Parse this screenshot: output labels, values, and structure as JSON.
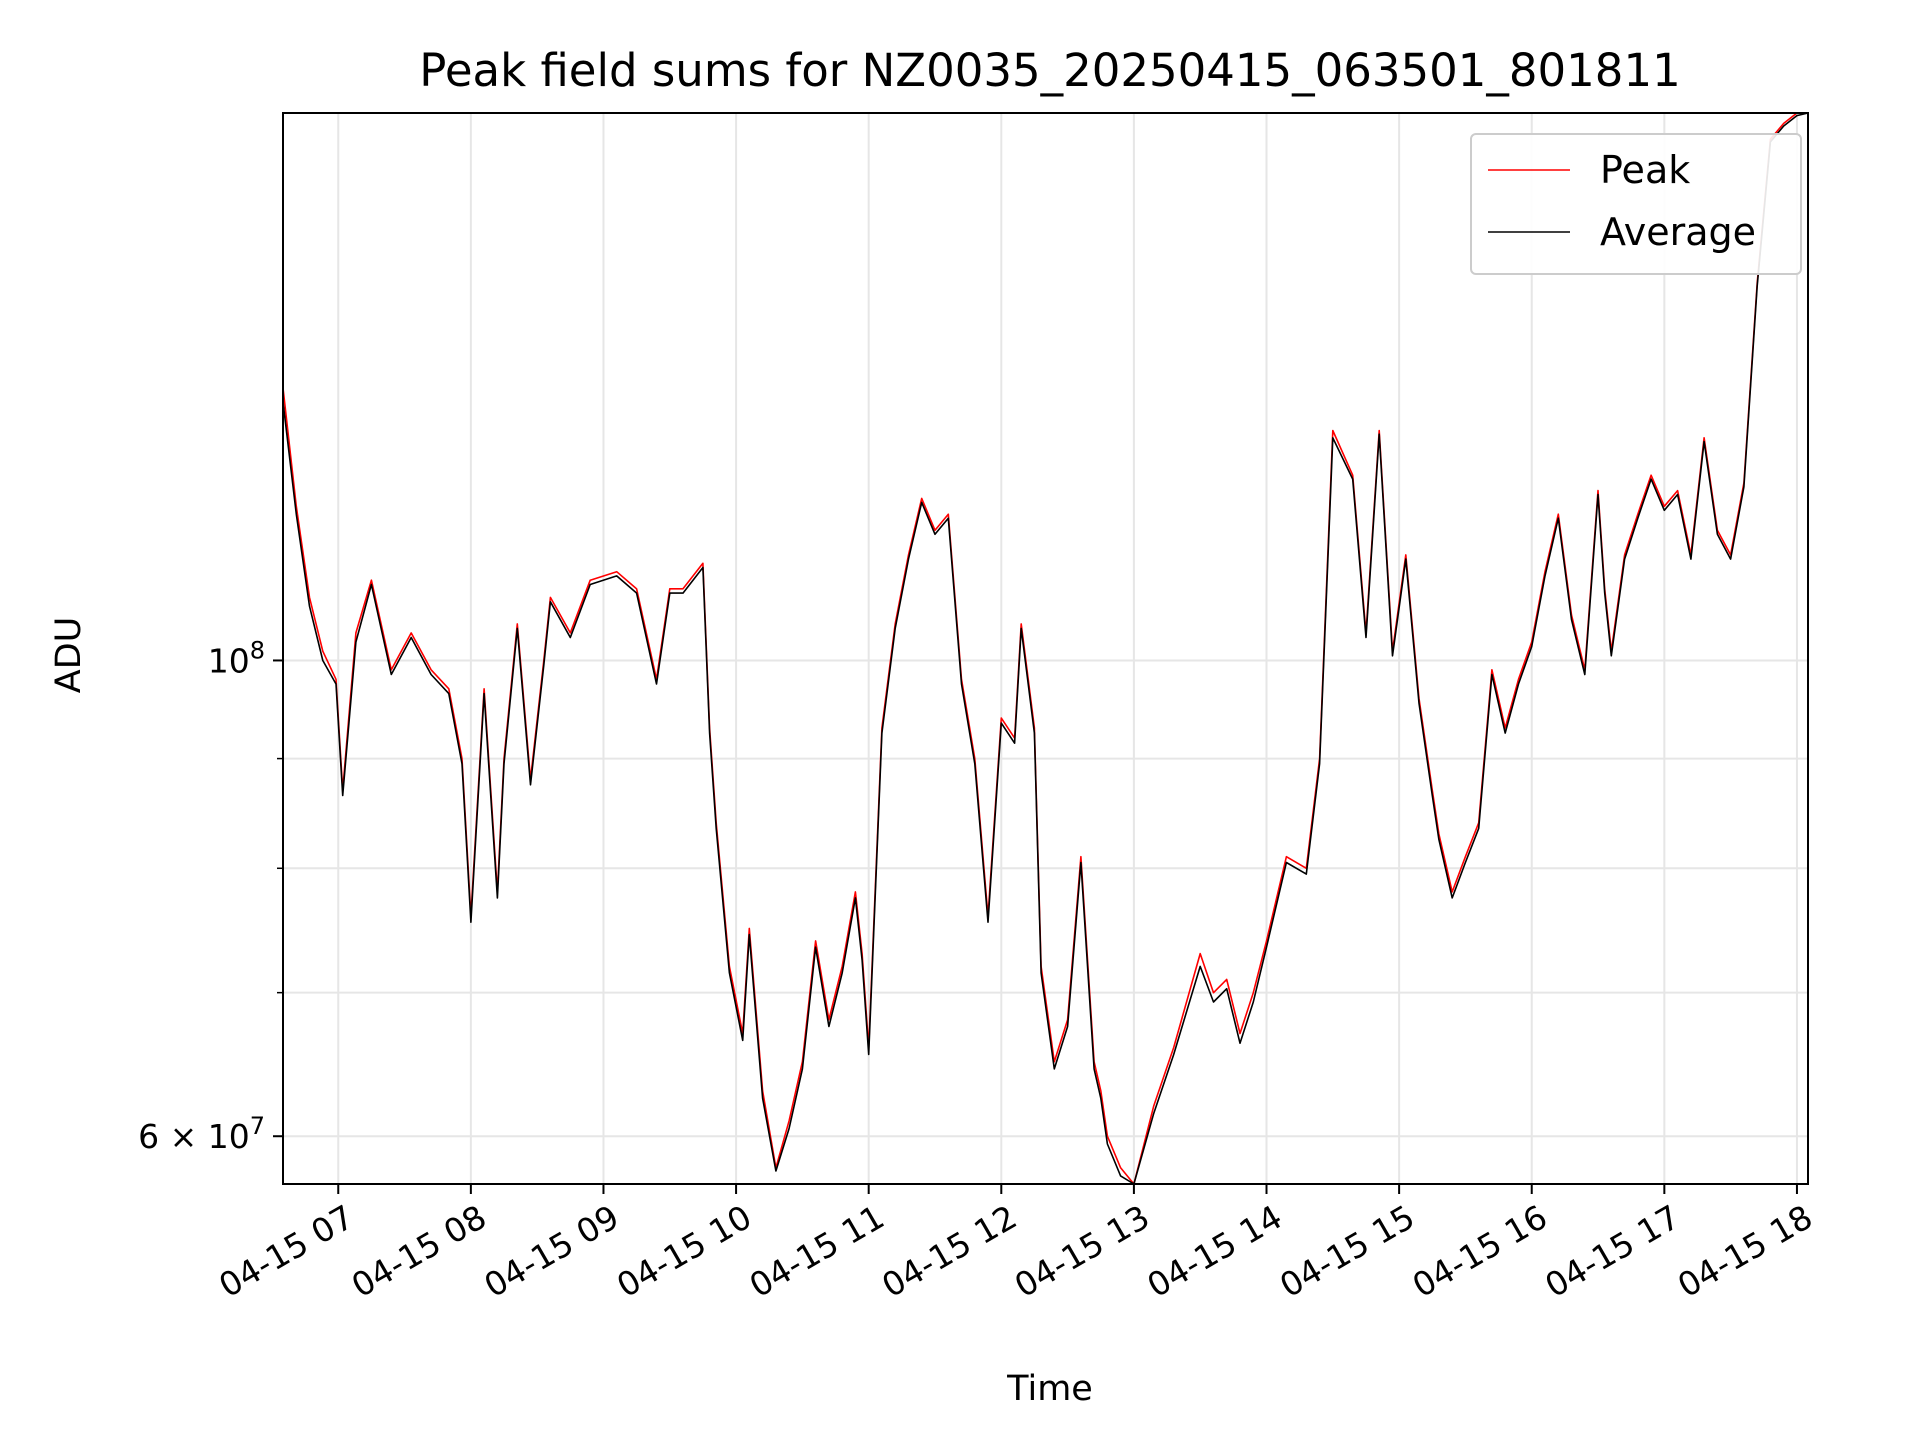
{
  "chart_data": {
    "type": "line",
    "title": "Peak field sums for NZ0035_20250415_063501_801811",
    "xlabel": "Time",
    "ylabel": "ADU",
    "x_type": "time",
    "y_scale": "log",
    "xlim": [
      "04-15 06:35",
      "04-15 18:05"
    ],
    "ylim": [
      57000000,
      180000000
    ],
    "x_ticks": [
      "04-15 07",
      "04-15 08",
      "04-15 09",
      "04-15 10",
      "04-15 11",
      "04-15 12",
      "04-15 13",
      "04-15 14",
      "04-15 15",
      "04-15 16",
      "04-15 17",
      "04-15 18"
    ],
    "y_ticks": [
      {
        "value": 100000000,
        "label_base": "10",
        "label_exp": "8"
      },
      {
        "value": 60000000,
        "label_base": "6 × 10",
        "label_exp": "7"
      }
    ],
    "y_minor_ticks": [
      70000000,
      80000000,
      90000000
    ],
    "grid": true,
    "legend_position": "top-right",
    "series": [
      {
        "name": "Peak",
        "color": "#ff0000",
        "x": [
          "04-15 06:35",
          "04-15 06:41",
          "04-15 06:47",
          "04-15 06:53",
          "04-15 06:59",
          "04-15 07:02",
          "04-15 07:08",
          "04-15 07:15",
          "04-15 07:24",
          "04-15 07:33",
          "04-15 07:42",
          "04-15 07:50",
          "04-15 07:56",
          "04-15 08:00",
          "04-15 08:06",
          "04-15 08:12",
          "04-15 08:15",
          "04-15 08:21",
          "04-15 08:27",
          "04-15 08:33",
          "04-15 08:36",
          "04-15 08:45",
          "04-15 08:54",
          "04-15 09:06",
          "04-15 09:15",
          "04-15 09:24",
          "04-15 09:30",
          "04-15 09:36",
          "04-15 09:45",
          "04-15 09:48",
          "04-15 09:51",
          "04-15 09:57",
          "04-15 10:03",
          "04-15 10:06",
          "04-15 10:12",
          "04-15 10:18",
          "04-15 10:24",
          "04-15 10:30",
          "04-15 10:36",
          "04-15 10:42",
          "04-15 10:48",
          "04-15 10:54",
          "04-15 10:57",
          "04-15 11:00",
          "04-15 11:06",
          "04-15 11:12",
          "04-15 11:18",
          "04-15 11:24",
          "04-15 11:30",
          "04-15 11:36",
          "04-15 11:42",
          "04-15 11:48",
          "04-15 11:54",
          "04-15 12:00",
          "04-15 12:06",
          "04-15 12:09",
          "04-15 12:15",
          "04-15 12:18",
          "04-15 12:24",
          "04-15 12:30",
          "04-15 12:36",
          "04-15 12:42",
          "04-15 12:45",
          "04-15 12:48",
          "04-15 12:54",
          "04-15 13:00",
          "04-15 13:09",
          "04-15 13:18",
          "04-15 13:30",
          "04-15 13:36",
          "04-15 13:42",
          "04-15 13:48",
          "04-15 13:54",
          "04-15 14:00",
          "04-15 14:09",
          "04-15 14:18",
          "04-15 14:24",
          "04-15 14:30",
          "04-15 14:39",
          "04-15 14:45",
          "04-15 14:51",
          "04-15 14:57",
          "04-15 15:03",
          "04-15 15:09",
          "04-15 15:15",
          "04-15 15:18",
          "04-15 15:24",
          "04-15 15:30",
          "04-15 15:36",
          "04-15 15:42",
          "04-15 15:48",
          "04-15 15:54",
          "04-15 16:00",
          "04-15 16:06",
          "04-15 16:12",
          "04-15 16:18",
          "04-15 16:24",
          "04-15 16:30",
          "04-15 16:33",
          "04-15 16:36",
          "04-15 16:42",
          "04-15 16:48",
          "04-15 16:54",
          "04-15 17:00",
          "04-15 17:06",
          "04-15 17:12",
          "04-15 17:18",
          "04-15 17:24",
          "04-15 17:30",
          "04-15 17:36",
          "04-15 17:42",
          "04-15 17:48",
          "04-15 17:54",
          "04-15 18:00",
          "04-15 18:05"
        ],
        "y": [
          134000000,
          118000000,
          107000000,
          101000000,
          98000000,
          87000000,
          103000000,
          109000000,
          99000000,
          103000000,
          99000000,
          97000000,
          90000000,
          76000000,
          97000000,
          78000000,
          90000000,
          104000000,
          88000000,
          100000000,
          107000000,
          103000000,
          109000000,
          110000000,
          108000000,
          98000000,
          108000000,
          108000000,
          111000000,
          93000000,
          84000000,
          72000000,
          67000000,
          75000000,
          63000000,
          58000000,
          61000000,
          65000000,
          74000000,
          68000000,
          72000000,
          78000000,
          73000000,
          66000000,
          93000000,
          104000000,
          112000000,
          119000000,
          115000000,
          117000000,
          98000000,
          90000000,
          76000000,
          94000000,
          92000000,
          104000000,
          93000000,
          72000000,
          65000000,
          68000000,
          81000000,
          65000000,
          63000000,
          60000000,
          58000000,
          57000000,
          62000000,
          66000000,
          73000000,
          70000000,
          71000000,
          67000000,
          70000000,
          74000000,
          81000000,
          80000000,
          90000000,
          128000000,
          122000000,
          103000000,
          128000000,
          101000000,
          112000000,
          96000000,
          87000000,
          83000000,
          78000000,
          81000000,
          84000000,
          99000000,
          93000000,
          98000000,
          102000000,
          110000000,
          117000000,
          105000000,
          99000000,
          120000000,
          108000000,
          101000000,
          112000000,
          117000000,
          122000000,
          118000000,
          120000000,
          112000000,
          127000000,
          115000000,
          112000000,
          121000000,
          150000000,
          175000000,
          178000000,
          180000000,
          180000000
        ]
      },
      {
        "name": "Average",
        "color": "#000000",
        "x": [
          "04-15 06:35",
          "04-15 06:41",
          "04-15 06:47",
          "04-15 06:53",
          "04-15 06:59",
          "04-15 07:02",
          "04-15 07:08",
          "04-15 07:15",
          "04-15 07:24",
          "04-15 07:33",
          "04-15 07:42",
          "04-15 07:50",
          "04-15 07:56",
          "04-15 08:00",
          "04-15 08:06",
          "04-15 08:12",
          "04-15 08:15",
          "04-15 08:21",
          "04-15 08:27",
          "04-15 08:33",
          "04-15 08:36",
          "04-15 08:45",
          "04-15 08:54",
          "04-15 09:06",
          "04-15 09:15",
          "04-15 09:24",
          "04-15 09:30",
          "04-15 09:36",
          "04-15 09:45",
          "04-15 09:48",
          "04-15 09:51",
          "04-15 09:57",
          "04-15 10:03",
          "04-15 10:06",
          "04-15 10:12",
          "04-15 10:18",
          "04-15 10:24",
          "04-15 10:30",
          "04-15 10:36",
          "04-15 10:42",
          "04-15 10:48",
          "04-15 10:54",
          "04-15 10:57",
          "04-15 11:00",
          "04-15 11:06",
          "04-15 11:12",
          "04-15 11:18",
          "04-15 11:24",
          "04-15 11:30",
          "04-15 11:36",
          "04-15 11:42",
          "04-15 11:48",
          "04-15 11:54",
          "04-15 12:00",
          "04-15 12:06",
          "04-15 12:09",
          "04-15 12:15",
          "04-15 12:18",
          "04-15 12:24",
          "04-15 12:30",
          "04-15 12:36",
          "04-15 12:42",
          "04-15 12:45",
          "04-15 12:48",
          "04-15 12:54",
          "04-15 13:00",
          "04-15 13:09",
          "04-15 13:18",
          "04-15 13:30",
          "04-15 13:36",
          "04-15 13:42",
          "04-15 13:48",
          "04-15 13:54",
          "04-15 14:00",
          "04-15 14:09",
          "04-15 14:18",
          "04-15 14:24",
          "04-15 14:30",
          "04-15 14:39",
          "04-15 14:45",
          "04-15 14:51",
          "04-15 14:57",
          "04-15 15:03",
          "04-15 15:09",
          "04-15 15:15",
          "04-15 15:18",
          "04-15 15:24",
          "04-15 15:30",
          "04-15 15:36",
          "04-15 15:42",
          "04-15 15:48",
          "04-15 15:54",
          "04-15 16:00",
          "04-15 16:06",
          "04-15 16:12",
          "04-15 16:18",
          "04-15 16:24",
          "04-15 16:30",
          "04-15 16:33",
          "04-15 16:36",
          "04-15 16:42",
          "04-15 16:48",
          "04-15 16:54",
          "04-15 17:00",
          "04-15 17:06",
          "04-15 17:12",
          "04-15 17:18",
          "04-15 17:24",
          "04-15 17:30",
          "04-15 17:36",
          "04-15 17:42",
          "04-15 17:48",
          "04-15 17:54",
          "04-15 18:00",
          "04-15 18:05"
        ],
        "y": [
          132000000,
          117000000,
          106000000,
          100000000,
          97500000,
          86500000,
          102000000,
          108500000,
          98500000,
          102500000,
          98500000,
          96500000,
          89500000,
          75500000,
          96500000,
          77500000,
          89500000,
          103500000,
          87500000,
          99500000,
          106500000,
          102500000,
          108500000,
          109500000,
          107500000,
          97500000,
          107500000,
          107500000,
          110500000,
          92500000,
          83500000,
          71500000,
          66500000,
          74500000,
          62500000,
          57800000,
          60500000,
          64500000,
          73500000,
          67500000,
          71500000,
          77500000,
          72500000,
          65500000,
          92500000,
          103500000,
          111500000,
          118500000,
          114500000,
          116500000,
          97500000,
          89500000,
          75500000,
          93500000,
          91500000,
          103500000,
          92500000,
          71500000,
          64500000,
          67500000,
          80500000,
          64500000,
          62500000,
          59500000,
          57500000,
          56800000,
          61500000,
          65500000,
          72000000,
          69300000,
          70300000,
          66300000,
          69300000,
          73500000,
          80500000,
          79500000,
          89500000,
          127000000,
          121500000,
          102500000,
          127500000,
          100500000,
          111500000,
          95500000,
          86500000,
          82500000,
          77500000,
          80500000,
          83500000,
          98500000,
          92500000,
          97500000,
          101500000,
          109500000,
          116500000,
          104500000,
          98500000,
          119500000,
          107500000,
          100500000,
          111500000,
          116500000,
          121500000,
          117500000,
          119500000,
          111500000,
          126500000,
          114500000,
          111500000,
          120500000,
          149500000,
          174500000,
          177500000,
          179500000,
          180000000
        ]
      }
    ]
  }
}
